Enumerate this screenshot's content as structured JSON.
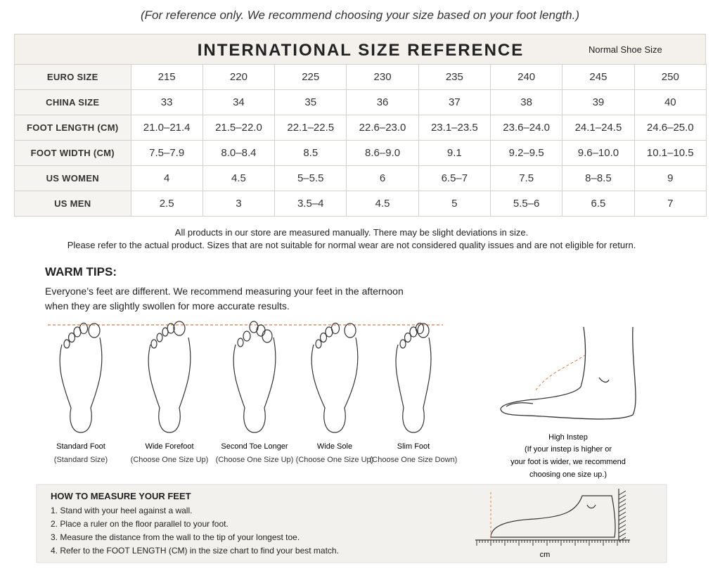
{
  "top_note": "(For reference only. We recommend choosing your size based on your foot length.)",
  "table": {
    "title": "INTERNATIONAL SIZE REFERENCE",
    "subtitle": "Normal Shoe Size",
    "rows": [
      [
        "EURO SIZE",
        "215",
        "220",
        "225",
        "230",
        "235",
        "240",
        "245",
        "250"
      ],
      [
        "CHINA SIZE",
        "33",
        "34",
        "35",
        "36",
        "37",
        "38",
        "39",
        "40"
      ],
      [
        "FOOT LENGTH (CM)",
        "21.0–21.4",
        "21.5–22.0",
        "22.1–22.5",
        "22.6–23.0",
        "23.1–23.5",
        "23.6–24.0",
        "24.1–24.5",
        "24.6–25.0"
      ],
      [
        "FOOT WIDTH (CM)",
        "7.5–7.9",
        "8.0–8.4",
        "8.5",
        "8.6–9.0",
        "9.1",
        "9.2–9.5",
        "9.6–10.0",
        "10.1–10.5"
      ],
      [
        "US WOMEN",
        "4",
        "4.5",
        "5–5.5",
        "6",
        "6.5–7",
        "7.5",
        "8–8.5",
        "9"
      ],
      [
        "US MEN",
        "2.5",
        "3",
        "3.5–4",
        "4.5",
        "5",
        "5.5–6",
        "6.5",
        "7"
      ]
    ]
  },
  "notes": [
    "All products in our store are measured manually. There may be slight deviations in size.",
    "Please refer to the actual product. Sizes that are not suitable for normal wear are not considered quality issues and are not eligible for return."
  ],
  "tips": {
    "title": "WARM TIPS:",
    "text": [
      "Everyone’s feet are different. We recommend measuring your feet in the afternoon",
      "when they are slightly swollen for more accurate results."
    ]
  },
  "feet": [
    {
      "name": "Standard Foot",
      "note": "(Standard Size)"
    },
    {
      "name": "Wide Forefoot",
      "note": "(Choose One Size Up)"
    },
    {
      "name": "Second Toe Longer",
      "note": "(Choose One Size Up)"
    },
    {
      "name": "Wide Sole",
      "note": "(Choose One Size Up)"
    },
    {
      "name": "Slim Foot",
      "note": "(Choose One Size Down)"
    }
  ],
  "instep": {
    "name": "High Instep",
    "note": [
      "(If your instep is higher or",
      "your foot is wider, we recommend",
      "choosing one size up.)"
    ]
  },
  "howto": {
    "title": "HOW TO MEASURE YOUR FEET",
    "steps": [
      "1. Stand with your heel against a wall.",
      "2. Place a ruler on the floor parallel to your foot.",
      "3. Measure the distance from the wall to the tip of your longest toe.",
      "4. Refer to the FOOT LENGTH (CM) in the size chart to find your best match."
    ],
    "unit": "cm"
  }
}
